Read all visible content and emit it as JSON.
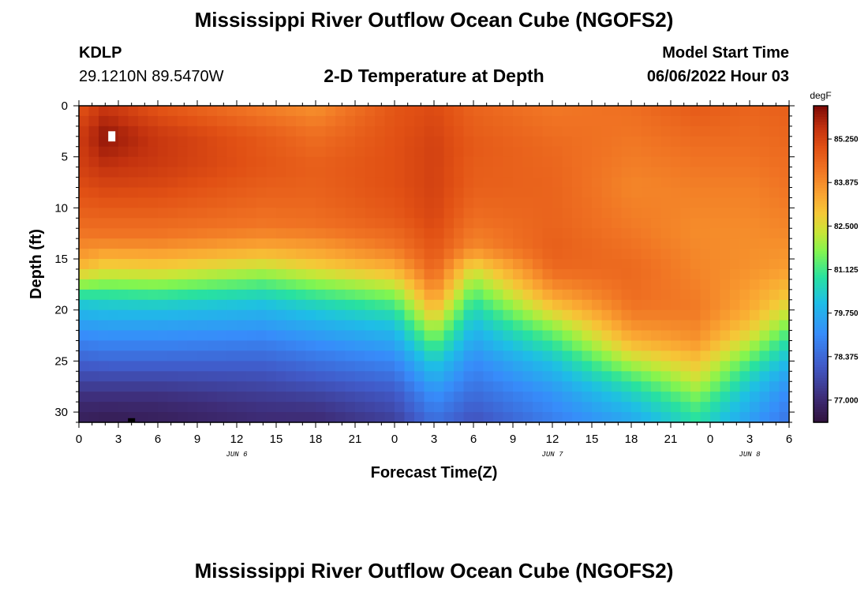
{
  "header": {
    "title": "Mississippi River Outflow Ocean Cube (NGOFS2)",
    "station_id": "KDLP",
    "station_location": "29.1210N  89.5470W",
    "subtitle": "2-D Temperature at Depth",
    "model_start_label": "Model Start Time",
    "model_start_value": "06/06/2022 Hour 03"
  },
  "footer": {
    "title": "Mississippi River Outflow Ocean Cube (NGOFS2)"
  },
  "chart_data": {
    "type": "heatmap",
    "title": "2-D Temperature at Depth",
    "xlabel": "Forecast Time(Z)",
    "ylabel": "Depth (ft)",
    "x_range_hours": [
      0,
      54
    ],
    "x_ticks": [
      {
        "hour": 0,
        "label": "0"
      },
      {
        "hour": 3,
        "label": "3"
      },
      {
        "hour": 6,
        "label": "6"
      },
      {
        "hour": 9,
        "label": "9"
      },
      {
        "hour": 12,
        "label": "12"
      },
      {
        "hour": 15,
        "label": "15"
      },
      {
        "hour": 18,
        "label": "18"
      },
      {
        "hour": 21,
        "label": "21"
      },
      {
        "hour": 24,
        "label": "0"
      },
      {
        "hour": 27,
        "label": "3"
      },
      {
        "hour": 30,
        "label": "6"
      },
      {
        "hour": 33,
        "label": "9"
      },
      {
        "hour": 36,
        "label": "12"
      },
      {
        "hour": 39,
        "label": "15"
      },
      {
        "hour": 42,
        "label": "18"
      },
      {
        "hour": 45,
        "label": "21"
      },
      {
        "hour": 48,
        "label": "0"
      },
      {
        "hour": 51,
        "label": "3"
      },
      {
        "hour": 54,
        "label": "6"
      }
    ],
    "date_labels": [
      {
        "hour": 12,
        "label": "JUN 6"
      },
      {
        "hour": 36,
        "label": "JUN 7"
      },
      {
        "hour": 51,
        "label": "JUN 8"
      }
    ],
    "y_range_ft": [
      0,
      31
    ],
    "y_ticks": [
      0,
      5,
      10,
      15,
      20,
      25,
      30
    ],
    "colorbar": {
      "units": "degF",
      "range": [
        76.3,
        86.3
      ],
      "tick_values": [
        85.25,
        83.875,
        82.5,
        81.125,
        79.75,
        78.375,
        77.0
      ],
      "tick_labels": [
        "85.250",
        "83.875",
        "82.500",
        "81.125",
        "79.750",
        "78.375",
        "77.000"
      ]
    },
    "profiles": [
      {
        "hour": 0,
        "depths": [
          0,
          3,
          6,
          9,
          12,
          15,
          17,
          19,
          21,
          24,
          27,
          29,
          31
        ],
        "temps": [
          84.9,
          85.4,
          85.3,
          84.9,
          84.4,
          83.6,
          82.3,
          80.5,
          79.6,
          78.6,
          77.6,
          77.0,
          76.7
        ]
      },
      {
        "hour": 2,
        "depths": [
          0,
          3,
          5,
          7,
          10,
          13,
          15,
          17,
          19,
          21,
          24,
          27,
          29,
          31
        ],
        "temps": [
          85.5,
          86.1,
          85.8,
          85.4,
          84.8,
          84.2,
          83.2,
          82.0,
          80.6,
          79.7,
          78.7,
          77.6,
          77.0,
          76.6
        ]
      },
      {
        "hour": 6,
        "depths": [
          0,
          3,
          5,
          7,
          10,
          13,
          15,
          17,
          19,
          21,
          24,
          27,
          29,
          31
        ],
        "temps": [
          84.9,
          85.5,
          85.5,
          85.3,
          84.8,
          84.2,
          83.3,
          82.1,
          80.7,
          79.7,
          78.7,
          77.6,
          77.0,
          76.7
        ]
      },
      {
        "hour": 14,
        "depths": [
          0,
          3,
          6,
          9,
          12,
          14,
          16,
          18,
          20,
          23,
          26,
          29,
          31
        ],
        "temps": [
          84.1,
          84.8,
          84.9,
          84.6,
          84.2,
          83.4,
          82.2,
          80.9,
          79.9,
          78.9,
          78.0,
          77.3,
          77.0
        ]
      },
      {
        "hour": 18,
        "depths": [
          0,
          3,
          6,
          9,
          12,
          15,
          17,
          19,
          21,
          24,
          27,
          29,
          31
        ],
        "temps": [
          83.8,
          84.4,
          84.7,
          84.6,
          84.3,
          83.2,
          82.0,
          80.8,
          79.9,
          78.9,
          78.0,
          77.4,
          77.0
        ]
      },
      {
        "hour": 24,
        "depths": [
          0,
          4,
          8,
          11,
          14,
          16,
          18,
          20,
          22,
          25,
          28,
          31
        ],
        "temps": [
          84.9,
          85.0,
          85.0,
          84.8,
          84.2,
          83.3,
          82.0,
          80.9,
          80.0,
          79.0,
          78.1,
          77.5
        ]
      },
      {
        "hour": 27,
        "depths": [
          0,
          4,
          8,
          11,
          14,
          16,
          18,
          20,
          22,
          25,
          28,
          31
        ],
        "temps": [
          85.1,
          85.3,
          85.3,
          85.2,
          84.9,
          84.6,
          84.0,
          83.1,
          82.0,
          80.4,
          79.3,
          78.5
        ]
      },
      {
        "hour": 30,
        "depths": [
          0,
          4,
          8,
          11,
          14,
          16,
          18,
          20,
          22,
          25,
          28,
          31
        ],
        "temps": [
          84.6,
          84.8,
          84.7,
          84.4,
          83.9,
          82.5,
          81.5,
          80.6,
          79.9,
          79.1,
          78.5,
          77.9
        ]
      },
      {
        "hour": 36,
        "depths": [
          0,
          4,
          8,
          11,
          14,
          16,
          18,
          20,
          22,
          25,
          28,
          31
        ],
        "temps": [
          84.2,
          84.5,
          84.6,
          84.6,
          84.7,
          84.5,
          83.8,
          82.8,
          81.6,
          80.2,
          79.3,
          78.8
        ]
      },
      {
        "hour": 42,
        "depths": [
          0,
          4,
          8,
          12,
          16,
          19,
          21,
          23,
          25,
          27,
          29,
          31
        ],
        "temps": [
          84.4,
          84.2,
          84.0,
          84.2,
          84.5,
          84.4,
          84.0,
          83.3,
          82.2,
          81.0,
          80.2,
          79.6
        ]
      },
      {
        "hour": 47,
        "depths": [
          0,
          4,
          8,
          12,
          16,
          20,
          23,
          25,
          27,
          29,
          31
        ],
        "temps": [
          84.8,
          84.4,
          84.1,
          83.9,
          84.0,
          84.2,
          83.8,
          83.0,
          82.3,
          81.4,
          80.8
        ]
      },
      {
        "hour": 51,
        "depths": [
          0,
          4,
          8,
          12,
          16,
          20,
          22,
          24,
          26,
          28,
          31
        ],
        "temps": [
          84.6,
          84.4,
          84.1,
          83.9,
          83.8,
          83.4,
          82.8,
          81.8,
          80.8,
          80.1,
          79.4
        ]
      },
      {
        "hour": 54,
        "depths": [
          0,
          4,
          8,
          12,
          16,
          19,
          21,
          23,
          25,
          27,
          29,
          31
        ],
        "temps": [
          84.7,
          84.5,
          84.3,
          84.0,
          83.6,
          82.8,
          81.9,
          80.8,
          80.0,
          79.3,
          78.9,
          78.6
        ]
      }
    ],
    "markers": [
      {
        "name": "white-marker",
        "hour": 2.5,
        "depth_range": [
          2.5,
          3.5
        ],
        "color": "#ffffff"
      },
      {
        "name": "black-marker",
        "hour": 4,
        "depth_range": [
          30.6,
          31
        ],
        "color": "#000000"
      }
    ]
  }
}
